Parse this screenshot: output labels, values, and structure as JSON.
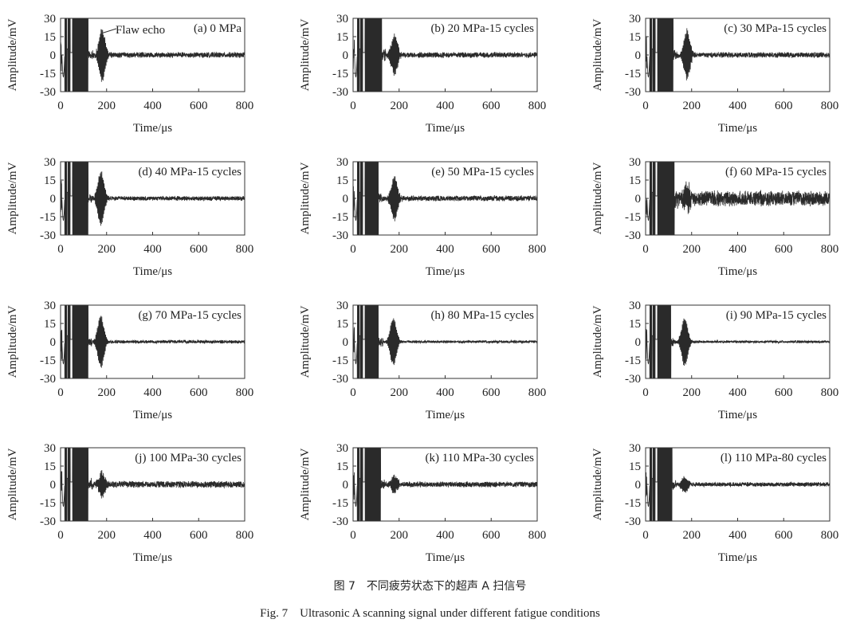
{
  "caption_cn": "图 7　不同疲劳状态下的超声 A 扫信号",
  "caption_en": "Fig. 7　Ultrasonic A scanning signal under different fatigue conditions",
  "annotation": "Flaw echo",
  "chart_data": [
    {
      "type": "line",
      "title": "(a) 0 MPa",
      "xlabel": "Time/μs",
      "ylabel": "Amplitude/mV",
      "xlim": [
        0,
        800
      ],
      "ylim": [
        -30,
        30
      ],
      "xticks": [
        "0",
        "200",
        "400",
        "600",
        "800"
      ],
      "yticks": [
        "30",
        "15",
        "0",
        "-15",
        "-30"
      ],
      "features": {
        "initial_pulse_end": 120,
        "flaw_echo_center": 180,
        "flaw_echo_amplitude": 22,
        "noise_amplitude": 2.5
      }
    },
    {
      "type": "line",
      "title": "(b) 20 MPa-15 cycles",
      "xlabel": "Time/μs",
      "ylabel": "Amplitude/mV",
      "xlim": [
        0,
        800
      ],
      "ylim": [
        -30,
        30
      ],
      "xticks": [
        "0",
        "200",
        "400",
        "600",
        "800"
      ],
      "yticks": [
        "30",
        "15",
        "0",
        "-15",
        "-30"
      ],
      "features": {
        "initial_pulse_end": 125,
        "flaw_echo_center": 180,
        "flaw_echo_amplitude": 17,
        "noise_amplitude": 2.5
      }
    },
    {
      "type": "line",
      "title": "(c) 30 MPa-15 cycles",
      "xlabel": "Time/μs",
      "ylabel": "Amplitude/mV",
      "xlim": [
        0,
        800
      ],
      "ylim": [
        -30,
        30
      ],
      "xticks": [
        "0",
        "200",
        "400",
        "600",
        "800"
      ],
      "yticks": [
        "30",
        "15",
        "0",
        "-15",
        "-30"
      ],
      "features": {
        "initial_pulse_end": 120,
        "flaw_echo_center": 180,
        "flaw_echo_amplitude": 20,
        "noise_amplitude": 2.5
      }
    },
    {
      "type": "line",
      "title": "(d) 40 MPa-15 cycles",
      "xlabel": "Time/μs",
      "ylabel": "Amplitude/mV",
      "xlim": [
        0,
        800
      ],
      "ylim": [
        -30,
        30
      ],
      "xticks": [
        "0",
        "200",
        "400",
        "600",
        "800"
      ],
      "yticks": [
        "30",
        "15",
        "0",
        "-15",
        "-30"
      ],
      "features": {
        "initial_pulse_end": 120,
        "flaw_echo_center": 175,
        "flaw_echo_amplitude": 23,
        "noise_amplitude": 2
      }
    },
    {
      "type": "line",
      "title": "(e) 50 MPa-15 cycles",
      "xlabel": "Time/μs",
      "ylabel": "Amplitude/mV",
      "xlim": [
        0,
        800
      ],
      "ylim": [
        -30,
        30
      ],
      "xticks": [
        "0",
        "200",
        "400",
        "600",
        "800"
      ],
      "yticks": [
        "30",
        "15",
        "0",
        "-15",
        "-30"
      ],
      "features": {
        "initial_pulse_end": 110,
        "flaw_echo_center": 180,
        "flaw_echo_amplitude": 18,
        "noise_amplitude": 2.5
      }
    },
    {
      "type": "line",
      "title": "(f) 60 MPa-15 cycles",
      "xlabel": "Time/μs",
      "ylabel": "Amplitude/mV",
      "xlim": [
        0,
        800
      ],
      "ylim": [
        -30,
        30
      ],
      "xticks": [
        "0",
        "200",
        "400",
        "600",
        "800"
      ],
      "yticks": [
        "30",
        "15",
        "0",
        "-15",
        "-30"
      ],
      "features": {
        "initial_pulse_end": 125,
        "flaw_echo_center": 180,
        "flaw_echo_amplitude": 10,
        "noise_amplitude": 7
      }
    },
    {
      "type": "line",
      "title": "(g) 70 MPa-15 cycles",
      "xlabel": "Time/μs",
      "ylabel": "Amplitude/mV",
      "xlim": [
        0,
        800
      ],
      "ylim": [
        -30,
        30
      ],
      "xticks": [
        "0",
        "200",
        "400",
        "600",
        "800"
      ],
      "yticks": [
        "30",
        "15",
        "0",
        "-15",
        "-30"
      ],
      "features": {
        "initial_pulse_end": 120,
        "flaw_echo_center": 175,
        "flaw_echo_amplitude": 22,
        "noise_amplitude": 1.5
      }
    },
    {
      "type": "line",
      "title": "(h) 80 MPa-15 cycles",
      "xlabel": "Time/μs",
      "ylabel": "Amplitude/mV",
      "xlim": [
        0,
        800
      ],
      "ylim": [
        -30,
        30
      ],
      "xticks": [
        "0",
        "200",
        "400",
        "600",
        "800"
      ],
      "yticks": [
        "30",
        "15",
        "0",
        "-15",
        "-30"
      ],
      "features": {
        "initial_pulse_end": 110,
        "flaw_echo_center": 175,
        "flaw_echo_amplitude": 20,
        "noise_amplitude": 1.2
      }
    },
    {
      "type": "line",
      "title": "(i) 90 MPa-15 cycles",
      "xlabel": "Time/μs",
      "ylabel": "Amplitude/mV",
      "xlim": [
        0,
        800
      ],
      "ylim": [
        -30,
        30
      ],
      "xticks": [
        "0",
        "200",
        "400",
        "600",
        "800"
      ],
      "yticks": [
        "30",
        "15",
        "0",
        "-15",
        "-30"
      ],
      "features": {
        "initial_pulse_end": 110,
        "flaw_echo_center": 170,
        "flaw_echo_amplitude": 20,
        "noise_amplitude": 1.2
      }
    },
    {
      "type": "line",
      "title": "(j) 100 MPa-30 cycles",
      "xlabel": "Time/μs",
      "ylabel": "Amplitude/mV",
      "xlim": [
        0,
        800
      ],
      "ylim": [
        -30,
        30
      ],
      "xticks": [
        "0",
        "200",
        "400",
        "600",
        "800"
      ],
      "yticks": [
        "30",
        "15",
        "0",
        "-15",
        "-30"
      ],
      "features": {
        "initial_pulse_end": 120,
        "flaw_echo_center": 180,
        "flaw_echo_amplitude": 10,
        "noise_amplitude": 3
      }
    },
    {
      "type": "line",
      "title": "(k) 110 MPa-30 cycles",
      "xlabel": "Time/μs",
      "ylabel": "Amplitude/mV",
      "xlim": [
        0,
        800
      ],
      "ylim": [
        -30,
        30
      ],
      "xticks": [
        "0",
        "200",
        "400",
        "600",
        "800"
      ],
      "yticks": [
        "30",
        "15",
        "0",
        "-15",
        "-30"
      ],
      "features": {
        "initial_pulse_end": 120,
        "flaw_echo_center": 180,
        "flaw_echo_amplitude": 7,
        "noise_amplitude": 2.5
      }
    },
    {
      "type": "line",
      "title": "(l) 110 MPa-80 cycles",
      "xlabel": "Time/μs",
      "ylabel": "Amplitude/mV",
      "xlim": [
        0,
        800
      ],
      "ylim": [
        -30,
        30
      ],
      "xticks": [
        "0",
        "200",
        "400",
        "600",
        "800"
      ],
      "yticks": [
        "30",
        "15",
        "0",
        "-15",
        "-30"
      ],
      "features": {
        "initial_pulse_end": 115,
        "flaw_echo_center": 170,
        "flaw_echo_amplitude": 6,
        "noise_amplitude": 2
      }
    }
  ]
}
